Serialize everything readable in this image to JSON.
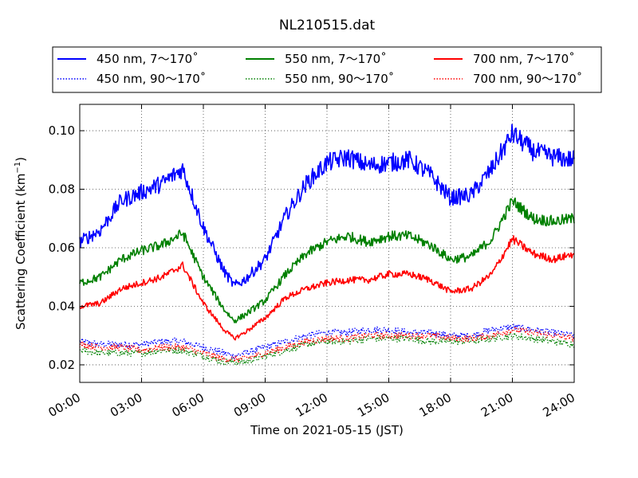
{
  "chart_data": {
    "type": "line",
    "title": "NL210515.dat",
    "xlabel": "Time on 2021-05-15 (JST)",
    "ylabel": "Scattering Coefficient (km",
    "ylabel_sup": "−1",
    "ylabel_end": ")",
    "xlim": [
      "00:00",
      "24:00"
    ],
    "ylim": [
      0.014,
      0.109
    ],
    "grid": true,
    "legend_position": "top",
    "x_ticks": [
      "00:00",
      "03:00",
      "06:00",
      "09:00",
      "12:00",
      "15:00",
      "18:00",
      "21:00",
      "24:00"
    ],
    "y_ticks": [
      "0.02",
      "0.04",
      "0.06",
      "0.08",
      "0.10"
    ],
    "x_hours": [
      0,
      1,
      2,
      3,
      4,
      5,
      6,
      7,
      7.5,
      8,
      9,
      10,
      11,
      12,
      13,
      14,
      15,
      16,
      17,
      18,
      19,
      20,
      21,
      22,
      23,
      24
    ],
    "series": [
      {
        "name": "450 nm, 7～170˚",
        "color": "#0000ff",
        "style": "solid",
        "values": [
          0.062,
          0.066,
          0.076,
          0.079,
          0.082,
          0.087,
          0.067,
          0.052,
          0.047,
          0.049,
          0.056,
          0.071,
          0.082,
          0.089,
          0.091,
          0.088,
          0.089,
          0.09,
          0.085,
          0.077,
          0.078,
          0.087,
          0.099,
          0.093,
          0.091,
          0.09
        ]
      },
      {
        "name": "450 nm, 90～170˚",
        "color": "#0000ff",
        "style": "dotted",
        "values": [
          0.028,
          0.027,
          0.027,
          0.027,
          0.028,
          0.028,
          0.026,
          0.024,
          0.023,
          0.024,
          0.026,
          0.028,
          0.03,
          0.031,
          0.031,
          0.032,
          0.032,
          0.031,
          0.031,
          0.03,
          0.03,
          0.032,
          0.033,
          0.032,
          0.031,
          0.03
        ]
      },
      {
        "name": "550 nm, 7～170˚",
        "color": "#008000",
        "style": "solid",
        "values": [
          0.048,
          0.05,
          0.056,
          0.059,
          0.061,
          0.065,
          0.05,
          0.039,
          0.035,
          0.037,
          0.042,
          0.051,
          0.058,
          0.062,
          0.064,
          0.062,
          0.064,
          0.064,
          0.061,
          0.056,
          0.057,
          0.063,
          0.076,
          0.07,
          0.069,
          0.07
        ]
      },
      {
        "name": "550 nm, 90～170˚",
        "color": "#008000",
        "style": "dotted",
        "values": [
          0.025,
          0.024,
          0.024,
          0.024,
          0.025,
          0.025,
          0.023,
          0.021,
          0.021,
          0.021,
          0.023,
          0.025,
          0.027,
          0.028,
          0.028,
          0.029,
          0.029,
          0.029,
          0.028,
          0.028,
          0.028,
          0.029,
          0.03,
          0.029,
          0.028,
          0.027
        ]
      },
      {
        "name": "700 nm, 7～170˚",
        "color": "#ff0000",
        "style": "solid",
        "values": [
          0.04,
          0.041,
          0.046,
          0.048,
          0.05,
          0.054,
          0.041,
          0.032,
          0.029,
          0.031,
          0.036,
          0.043,
          0.046,
          0.048,
          0.049,
          0.049,
          0.051,
          0.051,
          0.049,
          0.045,
          0.046,
          0.051,
          0.063,
          0.058,
          0.056,
          0.058
        ]
      },
      {
        "name": "700 nm, 90～170˚",
        "color": "#ff0000",
        "style": "dotted",
        "values": [
          0.027,
          0.026,
          0.026,
          0.025,
          0.026,
          0.026,
          0.024,
          0.022,
          0.022,
          0.022,
          0.024,
          0.026,
          0.028,
          0.029,
          0.029,
          0.03,
          0.03,
          0.03,
          0.03,
          0.029,
          0.029,
          0.03,
          0.032,
          0.031,
          0.03,
          0.029
        ]
      }
    ]
  }
}
